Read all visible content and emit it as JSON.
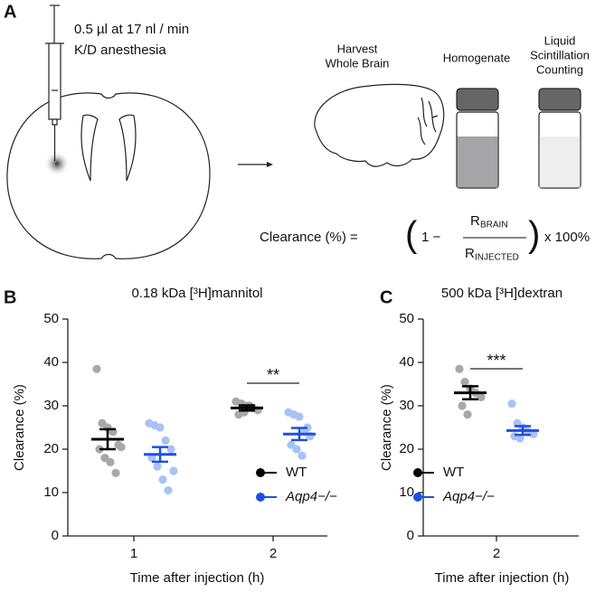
{
  "panel_labels": [
    "A",
    "B",
    "C"
  ],
  "panel_a": {
    "injection": [
      "0.5 µl at 17 nl / min",
      "K/D anesthesia"
    ],
    "harvest": [
      "Harvest",
      "Whole Brain"
    ],
    "homogenate": "Homogenate",
    "counting": [
      "Liquid",
      "Scintillation",
      "Counting"
    ],
    "formula": {
      "lhs": "Clearance (%) =",
      "open": "(",
      "one": "1 −",
      "num": "R",
      "num_sub": "BRAIN",
      "den": "R",
      "den_sub": "INJECTED",
      "close": ")",
      "tail": "x 100%"
    }
  },
  "chart_data": [
    {
      "type": "dot",
      "title": "0.18 kDa [³H]mannitol",
      "y_label": "Clearance (%)",
      "x_label": "Time after injection (h)",
      "categories": [
        "1",
        "2"
      ],
      "ylim": [
        0,
        50
      ],
      "yticks": [
        0,
        10,
        20,
        30,
        40,
        50
      ],
      "legend": "lower right",
      "annotations": [
        "**"
      ],
      "series": [
        {
          "name": "WT",
          "color": "#000000",
          "point_color": "#a8a8a8",
          "mean": [
            22.3,
            29.5
          ],
          "sem": [
            2.3,
            0.6
          ],
          "points": [
            [
              38.5,
              26,
              25,
              24,
              21,
              20,
              18,
              17,
              14.5,
              20.5
            ],
            [
              31,
              30.5,
              30,
              29.5,
              29,
              28,
              28.5,
              30
            ]
          ]
        },
        {
          "name": "Aqp4−/−",
          "color": "#1f4fe0",
          "point_color": "#a9c2f5",
          "mean": [
            18.8,
            23.5
          ],
          "sem": [
            1.7,
            1.4
          ],
          "points": [
            [
              26,
              25.5,
              25,
              22,
              20,
              18,
              16,
              13,
              10.5,
              15
            ],
            [
              28.5,
              28,
              27.5,
              24,
              23,
              21,
              20,
              18.5,
              25
            ]
          ]
        }
      ]
    },
    {
      "type": "dot",
      "title": "500 kDa [³H]dextran",
      "y_label": "Clearance (%)",
      "x_label": "Time after injection (h)",
      "categories": [
        "2"
      ],
      "ylim": [
        0,
        50
      ],
      "yticks": [
        0,
        10,
        20,
        30,
        40,
        50
      ],
      "legend": "lower left",
      "annotations": [
        "***"
      ],
      "series": [
        {
          "name": "WT",
          "color": "#000000",
          "point_color": "#a8a8a8",
          "mean": [
            33
          ],
          "sem": [
            1.5
          ],
          "points": [
            [
              38.5,
              35.5,
              34,
              33,
              32,
              30,
              28
            ]
          ]
        },
        {
          "name": "Aqp4−/−",
          "color": "#1f4fe0",
          "point_color": "#a9c2f5",
          "mean": [
            24.3
          ],
          "sem": [
            1
          ],
          "points": [
            [
              30.5,
              26,
              25,
              24,
              23.5,
              23,
              22.5
            ]
          ]
        }
      ]
    }
  ]
}
